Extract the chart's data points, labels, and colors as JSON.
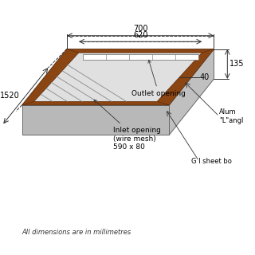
{
  "bg_color": "#ffffff",
  "frame_color": "#8B4513",
  "gray_top": "#d8d8d8",
  "gray_side_right": "#c0c0c0",
  "gray_side_front": "#b8b8b8",
  "gray_inner": "#e0e0e0",
  "title_note": "All dimensions are in millimetres",
  "dim_700": "700",
  "dim_620": "620",
  "dim_1520": "1520",
  "dim_135": "135",
  "dim_40": "40",
  "label_outlet": "Outlet opening",
  "label_inlet": "Inlet opening\n(wire mesh)\n590 x 80",
  "label_alum": "Alum\n\"L\"angl",
  "label_gi": "G I sheet bo"
}
